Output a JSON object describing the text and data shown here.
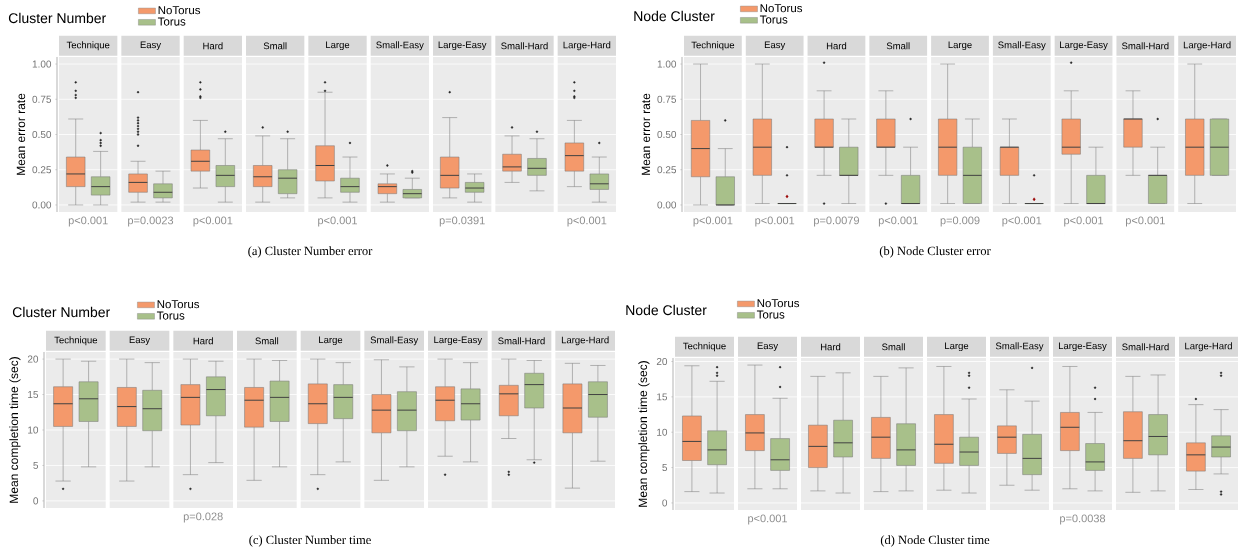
{
  "chart_data": [
    {
      "type": "box",
      "title": "Cluster Number",
      "ylabel": "Mean error rate",
      "legend": "top left",
      "grid": "y",
      "categories": [
        "Technique",
        "Easy",
        "Hard",
        "Small",
        "Large",
        "Small-Easy",
        "Large-Easy",
        "Small-Hard",
        "Large-Hard"
      ],
      "ylim": [
        -0.05,
        1.05
      ],
      "yticks": [
        {
          "value": 0,
          "label": "0.00"
        },
        {
          "value": 0.25,
          "label": "0.25"
        },
        {
          "value": 0.5,
          "label": "0.50"
        },
        {
          "value": 0.75,
          "label": "0.75"
        },
        {
          "value": 1,
          "label": "1.00"
        }
      ],
      "series": [
        {
          "name": "NoTorus",
          "color": "#f4996b",
          "boxes": [
            {
              "low": 0.0,
              "q1": 0.13,
              "median": 0.22,
              "q3": 0.34,
              "high": 0.61,
              "outliers": [
                0.87,
                0.81,
                0.78,
                0.76
              ]
            },
            {
              "low": 0.02,
              "q1": 0.09,
              "median": 0.16,
              "q3": 0.22,
              "high": 0.31,
              "outliers": [
                0.8,
                0.62,
                0.6,
                0.58,
                0.56,
                0.54,
                0.52,
                0.5,
                0.42
              ]
            },
            {
              "low": 0.12,
              "q1": 0.24,
              "median": 0.31,
              "q3": 0.39,
              "high": 0.6,
              "outliers": [
                0.87,
                0.82,
                0.77,
                0.76
              ]
            },
            {
              "low": 0.02,
              "q1": 0.13,
              "median": 0.2,
              "q3": 0.28,
              "high": 0.49,
              "outliers": [
                0.55
              ]
            },
            {
              "low": 0.05,
              "q1": 0.17,
              "median": 0.28,
              "q3": 0.42,
              "high": 0.8,
              "outliers": [
                0.87,
                0.81
              ]
            },
            {
              "low": 0.02,
              "q1": 0.08,
              "median": 0.13,
              "q3": 0.15,
              "high": 0.22,
              "outliers": [
                0.28
              ]
            },
            {
              "low": 0.05,
              "q1": 0.12,
              "median": 0.21,
              "q3": 0.34,
              "high": 0.62,
              "outliers": [
                0.8
              ]
            },
            {
              "low": 0.16,
              "q1": 0.24,
              "median": 0.27,
              "q3": 0.36,
              "high": 0.49,
              "outliers": [
                0.55
              ]
            },
            {
              "low": 0.13,
              "q1": 0.24,
              "median": 0.35,
              "q3": 0.44,
              "high": 0.6,
              "outliers": [
                0.87,
                0.81,
                0.77,
                0.76
              ]
            }
          ]
        },
        {
          "name": "Torus",
          "color": "#a8c08a",
          "boxes": [
            {
              "low": 0.0,
              "q1": 0.07,
              "median": 0.13,
              "q3": 0.2,
              "high": 0.38,
              "outliers": [
                0.51,
                0.46,
                0.44,
                0.42
              ]
            },
            {
              "low": 0.02,
              "q1": 0.05,
              "median": 0.09,
              "q3": 0.15,
              "high": 0.24
            },
            {
              "low": 0.02,
              "q1": 0.13,
              "median": 0.21,
              "q3": 0.28,
              "high": 0.47,
              "outliers": [
                0.52
              ]
            },
            {
              "low": 0.05,
              "q1": 0.08,
              "median": 0.19,
              "q3": 0.25,
              "high": 0.47,
              "outliers": [
                0.52
              ]
            },
            {
              "low": 0.02,
              "q1": 0.09,
              "median": 0.13,
              "q3": 0.19,
              "high": 0.34,
              "outliers": [
                0.44
              ]
            },
            {
              "low": 0.05,
              "q1": 0.05,
              "median": 0.08,
              "q3": 0.11,
              "high": 0.19,
              "outliers": [
                0.24,
                0.23
              ]
            },
            {
              "low": 0.02,
              "q1": 0.09,
              "median": 0.12,
              "q3": 0.16,
              "high": 0.22
            },
            {
              "low": 0.1,
              "q1": 0.21,
              "median": 0.26,
              "q3": 0.33,
              "high": 0.47,
              "outliers": [
                0.52
              ]
            },
            {
              "low": 0.02,
              "q1": 0.11,
              "median": 0.15,
              "q3": 0.22,
              "high": 0.34,
              "outliers": [
                0.44
              ]
            }
          ]
        }
      ],
      "annotations": [
        "p<0.001",
        "p=0.0023",
        "p<0.001",
        "p<0.001",
        "p=0.0391",
        "p<0.001",
        "(a)  Cluster Number error"
      ]
    },
    {
      "type": "box",
      "title": "Node Cluster",
      "ylabel": "Mean error rate",
      "legend": "top left",
      "grid": "y",
      "categories": [
        "Technique",
        "Easy",
        "Hard",
        "Small",
        "Large",
        "Small-Easy",
        "Large-Easy",
        "Small-Hard",
        "Large-Hard"
      ],
      "ylim": [
        -0.05,
        1.05
      ],
      "yticks": [
        {
          "value": 0,
          "label": "0.00"
        },
        {
          "value": 0.25,
          "label": "0.25"
        },
        {
          "value": 0.5,
          "label": "0.50"
        },
        {
          "value": 0.75,
          "label": "0.75"
        },
        {
          "value": 1,
          "label": "1.00"
        }
      ],
      "series": [
        {
          "name": "NoTorus",
          "color": "#f4996b",
          "boxes": [
            {
              "low": 0.0,
              "q1": 0.2,
              "median": 0.4,
              "q3": 0.6,
              "high": 1.0
            },
            {
              "low": 0.01,
              "q1": 0.21,
              "median": 0.41,
              "q3": 0.61,
              "high": 1.0
            },
            {
              "low": 0.21,
              "q1": 0.41,
              "median": 0.41,
              "q3": 0.61,
              "high": 0.81,
              "outliers": [
                1.01,
                0.01
              ]
            },
            {
              "low": 0.21,
              "q1": 0.41,
              "median": 0.41,
              "q3": 0.61,
              "high": 0.81,
              "outliers": [
                0.01
              ]
            },
            {
              "low": 0.01,
              "q1": 0.21,
              "median": 0.41,
              "q3": 0.61,
              "high": 1.0
            },
            {
              "low": 0.01,
              "q1": 0.21,
              "median": 0.41,
              "q3": 0.41,
              "high": 0.61
            },
            {
              "low": 0.01,
              "q1": 0.36,
              "median": 0.41,
              "q3": 0.61,
              "high": 0.81,
              "outliers": [
                1.01
              ]
            },
            {
              "low": 0.21,
              "q1": 0.41,
              "median": 0.61,
              "q3": 0.61,
              "high": 0.81
            },
            {
              "low": 0.01,
              "q1": 0.21,
              "median": 0.41,
              "q3": 0.61,
              "high": 1.0
            }
          ]
        },
        {
          "name": "Torus",
          "color": "#a8c08a",
          "boxes": [
            {
              "low": 0.0,
              "q1": 0.0,
              "median": 0.0,
              "q3": 0.2,
              "high": 0.4,
              "outliers": [
                0.6
              ]
            },
            {
              "low": 0.01,
              "q1": 0.01,
              "median": 0.01,
              "q3": 0.01,
              "high": 0.01,
              "mean": 0.06,
              "outliers": [
                0.41,
                0.21
              ]
            },
            {
              "low": 0.01,
              "q1": 0.21,
              "median": 0.21,
              "q3": 0.41,
              "high": 0.61
            },
            {
              "low": 0.01,
              "q1": 0.01,
              "median": 0.01,
              "q3": 0.21,
              "high": 0.41,
              "outliers": [
                0.61
              ]
            },
            {
              "low": 0.01,
              "q1": 0.01,
              "median": 0.21,
              "q3": 0.41,
              "high": 0.61
            },
            {
              "low": 0.01,
              "q1": 0.01,
              "median": 0.01,
              "q3": 0.01,
              "high": 0.01,
              "mean": 0.04,
              "outliers": [
                0.21
              ]
            },
            {
              "low": 0.01,
              "q1": 0.01,
              "median": 0.01,
              "q3": 0.21,
              "high": 0.41
            },
            {
              "low": 0.01,
              "q1": 0.01,
              "median": 0.21,
              "q3": 0.21,
              "high": 0.41,
              "outliers": [
                0.61
              ]
            },
            {
              "low": 0.21,
              "q1": 0.21,
              "median": 0.41,
              "q3": 0.61,
              "high": 0.61
            }
          ]
        }
      ],
      "annotations": [
        "p<0.001",
        "p<0.001",
        "p=0.0079",
        "p<0.001",
        "p=0.009",
        "p<0.001",
        "p<0.001",
        "p<0.001",
        "(b)  Node Cluster error"
      ]
    },
    {
      "type": "box",
      "title": "Cluster Number",
      "ylabel": "Mean completion time (sec)",
      "legend": "top left",
      "grid": "y",
      "categories": [
        "Technique",
        "Easy",
        "Hard",
        "Small",
        "Large",
        "Small-Easy",
        "Large-Easy",
        "Small-Hard",
        "Large-Hard"
      ],
      "ylim": [
        -1,
        21
      ],
      "yticks": [
        0,
        5,
        10,
        15,
        20
      ],
      "series": [
        {
          "name": "NoTorus",
          "color": "#f4996b",
          "boxes": [
            {
              "low": 2.8,
              "q1": 10.5,
              "median": 13.7,
              "q3": 16.1,
              "high": 20.0,
              "outliers": [
                1.7
              ]
            },
            {
              "low": 2.8,
              "q1": 10.5,
              "median": 13.3,
              "q3": 16.0,
              "high": 20.0
            },
            {
              "low": 3.7,
              "q1": 10.7,
              "median": 14.6,
              "q3": 16.4,
              "high": 20.0,
              "outliers": [
                1.7
              ]
            },
            {
              "low": 2.9,
              "q1": 10.4,
              "median": 14.2,
              "q3": 16.0,
              "high": 20.0
            },
            {
              "low": 3.7,
              "q1": 10.9,
              "median": 13.7,
              "q3": 16.5,
              "high": 20.0,
              "outliers": [
                1.7
              ]
            },
            {
              "low": 2.9,
              "q1": 9.6,
              "median": 12.8,
              "q3": 15.0,
              "high": 19.9
            },
            {
              "low": 6.3,
              "q1": 11.3,
              "median": 14.2,
              "q3": 16.1,
              "high": 20.0,
              "outliers": [
                3.7
              ]
            },
            {
              "low": 8.8,
              "q1": 12.0,
              "median": 15.1,
              "q3": 16.3,
              "high": 20.0,
              "outliers": [
                4.1,
                3.7
              ]
            },
            {
              "low": 1.8,
              "q1": 9.6,
              "median": 13.1,
              "q3": 16.5,
              "high": 19.4
            }
          ]
        },
        {
          "name": "Torus",
          "color": "#a8c08a",
          "boxes": [
            {
              "low": 4.8,
              "q1": 11.2,
              "median": 14.4,
              "q3": 16.8,
              "high": 19.7
            },
            {
              "low": 4.8,
              "q1": 9.9,
              "median": 13.0,
              "q3": 15.6,
              "high": 19.5
            },
            {
              "low": 5.4,
              "q1": 12.0,
              "median": 15.7,
              "q3": 17.5,
              "high": 19.7
            },
            {
              "low": 4.8,
              "q1": 11.2,
              "median": 14.6,
              "q3": 16.9,
              "high": 19.8
            },
            {
              "low": 5.5,
              "q1": 11.6,
              "median": 14.6,
              "q3": 16.4,
              "high": 19.5
            },
            {
              "low": 4.8,
              "q1": 9.9,
              "median": 12.8,
              "q3": 15.4,
              "high": 18.9
            },
            {
              "low": 5.5,
              "q1": 11.4,
              "median": 13.7,
              "q3": 15.8,
              "high": 19.5
            },
            {
              "low": 5.8,
              "q1": 13.1,
              "median": 16.4,
              "q3": 18.0,
              "high": 19.8,
              "outliers": [
                5.4
              ]
            },
            {
              "low": 5.6,
              "q1": 11.8,
              "median": 15.0,
              "q3": 16.8,
              "high": 19.1
            }
          ]
        }
      ],
      "annotations": [
        "p=0.028",
        "(c)  Cluster Number time"
      ]
    },
    {
      "type": "box",
      "title": "Node Cluster",
      "ylabel": "Mean completion time (sec)",
      "legend": "top left",
      "grid": "y",
      "categories": [
        "Technique",
        "Easy",
        "Hard",
        "Small",
        "Large",
        "Small-Easy",
        "Large-Easy",
        "Small-Hard",
        "Large-Hard"
      ],
      "ylim": [
        -1,
        20.5
      ],
      "yticks": [
        0,
        5,
        10,
        15,
        20
      ],
      "series": [
        {
          "name": "NoTorus",
          "color": "#f4996b",
          "boxes": [
            {
              "low": 1.6,
              "q1": 6.0,
              "median": 8.7,
              "q3": 12.3,
              "high": 19.4
            },
            {
              "low": 2.0,
              "q1": 7.4,
              "median": 9.9,
              "q3": 12.5,
              "high": 19.5
            },
            {
              "low": 1.7,
              "q1": 5.0,
              "median": 8.0,
              "q3": 11.0,
              "high": 17.9
            },
            {
              "low": 1.6,
              "q1": 6.3,
              "median": 9.3,
              "q3": 12.1,
              "high": 17.9
            },
            {
              "low": 1.8,
              "q1": 5.6,
              "median": 8.3,
              "q3": 12.5,
              "high": 19.3
            },
            {
              "low": 2.5,
              "q1": 7.0,
              "median": 9.3,
              "q3": 10.9,
              "high": 16.0
            },
            {
              "low": 2.0,
              "q1": 7.4,
              "median": 10.7,
              "q3": 12.8,
              "high": 19.3
            },
            {
              "low": 1.5,
              "q1": 6.3,
              "median": 8.8,
              "q3": 12.9,
              "high": 17.9
            },
            {
              "low": 1.9,
              "q1": 4.5,
              "median": 6.8,
              "q3": 8.5,
              "high": 13.9,
              "outliers": [
                14.7
              ]
            }
          ]
        },
        {
          "name": "Torus",
          "color": "#a8c08a",
          "boxes": [
            {
              "low": 1.4,
              "q1": 5.4,
              "median": 7.5,
              "q3": 10.2,
              "high": 17.2,
              "outliers": [
                19.2,
                18.4,
                18.0
              ]
            },
            {
              "low": 2.0,
              "q1": 4.6,
              "median": 6.1,
              "q3": 9.1,
              "high": 14.8,
              "outliers": [
                19.2,
                16.4
              ]
            },
            {
              "low": 1.4,
              "q1": 6.5,
              "median": 8.5,
              "q3": 11.7,
              "high": 18.4
            },
            {
              "low": 1.7,
              "q1": 5.3,
              "median": 7.5,
              "q3": 11.2,
              "high": 19.1
            },
            {
              "low": 1.4,
              "q1": 5.3,
              "median": 7.2,
              "q3": 9.3,
              "high": 14.7,
              "outliers": [
                18.4,
                18.0,
                16.3
              ]
            },
            {
              "low": 1.8,
              "q1": 4.0,
              "median": 6.3,
              "q3": 9.7,
              "high": 14.4,
              "outliers": [
                19.1
              ]
            },
            {
              "low": 1.7,
              "q1": 4.6,
              "median": 5.8,
              "q3": 8.4,
              "high": 12.8,
              "outliers": [
                16.3,
                14.7
              ]
            },
            {
              "low": 1.7,
              "q1": 6.8,
              "median": 9.4,
              "q3": 12.5,
              "high": 18.1
            },
            {
              "low": 4.1,
              "q1": 6.5,
              "median": 7.9,
              "q3": 9.5,
              "high": 13.2,
              "outliers": [
                18.4,
                18.0,
                1.6,
                1.2
              ]
            }
          ]
        }
      ],
      "annotations": [
        "p<0.001",
        "p=0.0038",
        "(d)  Node Cluster time"
      ]
    }
  ]
}
